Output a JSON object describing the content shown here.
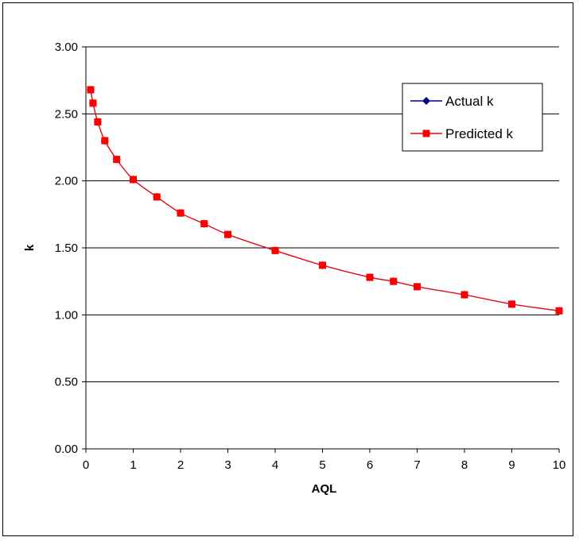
{
  "chart_data": {
    "type": "line",
    "title": "",
    "xlabel": "AQL",
    "ylabel": "k",
    "xlim": [
      0,
      10
    ],
    "ylim": [
      0,
      3
    ],
    "x_ticks": [
      "0",
      "1",
      "2",
      "3",
      "4",
      "5",
      "6",
      "7",
      "8",
      "9",
      "10"
    ],
    "y_ticks": [
      "0.00",
      "0.50",
      "1.00",
      "1.50",
      "2.00",
      "2.50",
      "3.00"
    ],
    "grid": "horizontal",
    "legend_position": "top-right",
    "series": [
      {
        "name": "Actual k",
        "color": "#000080",
        "marker": "diamond",
        "x": [
          0.1,
          0.15,
          0.25,
          0.4,
          0.65,
          1,
          1.5,
          2,
          2.5,
          3,
          4,
          5,
          6,
          6.5,
          7,
          8,
          9,
          10
        ],
        "y": [
          2.68,
          2.58,
          2.44,
          2.3,
          2.16,
          2.01,
          1.88,
          1.76,
          1.68,
          1.6,
          1.48,
          1.37,
          1.28,
          1.25,
          1.21,
          1.15,
          1.08,
          1.03
        ]
      },
      {
        "name": "Predicted k",
        "color": "#ff0000",
        "marker": "square",
        "x": [
          0.1,
          0.15,
          0.25,
          0.4,
          0.65,
          1,
          1.5,
          2,
          2.5,
          3,
          4,
          5,
          6,
          6.5,
          7,
          8,
          9,
          10
        ],
        "y": [
          2.68,
          2.58,
          2.44,
          2.3,
          2.16,
          2.01,
          1.88,
          1.76,
          1.68,
          1.6,
          1.48,
          1.37,
          1.28,
          1.25,
          1.21,
          1.15,
          1.08,
          1.03
        ]
      }
    ]
  }
}
